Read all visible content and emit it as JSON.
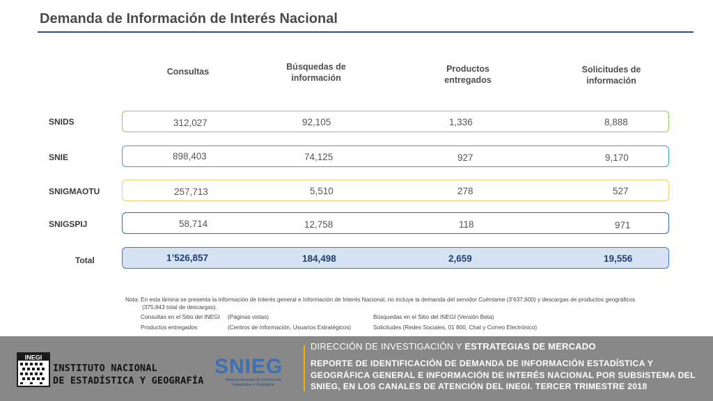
{
  "title": "Demanda de Información de Interés Nacional",
  "headers": {
    "consultas": "Consultas",
    "busquedas": "Búsquedas de información",
    "productos": "Productos entregados",
    "solicitudes": "Solicitudes de información"
  },
  "rows": [
    {
      "label": "SNIDS",
      "consultas": "312,027",
      "busquedas": "92,105",
      "productos": "1,336",
      "solicitudes": "8,888"
    },
    {
      "label": "SNIE",
      "consultas": "898,403",
      "busquedas": "74,125",
      "productos": "927",
      "solicitudes": "9,170"
    },
    {
      "label": "SNIGMAOTU",
      "consultas": "257,713",
      "busquedas": "5,510",
      "productos": "278",
      "solicitudes": "527"
    },
    {
      "label": "SNIGSPIJ",
      "consultas": "58,714",
      "busquedas": "12,758",
      "productos": "118",
      "solicitudes": "971"
    }
  ],
  "total": {
    "label": "Total",
    "consultas": "1’526,857",
    "busquedas": "184,498",
    "productos": "2,659",
    "solicitudes": "19,556"
  },
  "note": {
    "prefix": "Nota:",
    "line1": "En esta lámina se presenta la información de Interés general e Información de Interés Nacional, no incluye la demanda del servidor Cuéntame (3’637,600) y descargas de productos geográficos",
    "line2": "(375,843 total de descargas).",
    "legend": [
      {
        "term": "Consultas en el Sitio del INEGI",
        "desc": "(Páginas vistas)",
        "term2": "Búsquedas en el Sitio del INEGI (Versión Beta)"
      },
      {
        "term": "Productos entregados",
        "desc": "(Centros de Información, Usuarios Estratégicos)",
        "term2": "Solicitudes (Redes Sociales, 01 800, Chat y Correo Electrónico)"
      }
    ]
  },
  "footer": {
    "inegi_line1": "INSTITUTO NACIONAL",
    "inegi_line2": "DE ESTADÍSTICA Y GEOGRAFÍA",
    "inegi_logo_text": "INEGI",
    "snieg": "SNIEG",
    "snieg_sub": "Sistema Nacional de Información Estadística y Geográfica",
    "dept_part1": "DIRECCIÓN DE INVESTIGACIÓN Y ",
    "dept_part2": "ESTRATEGIAS DE MERCADO",
    "report": "REPORTE DE IDENTIFICACIÓN DE DEMANDA DE INFORMACIÓN ESTADÍSTICA Y GEOGRÁFICA GENERAL E INFORMACIÓN DE INTERÉS NACIONAL POR SUBSISTEMA DEL SNIEG, EN LOS CANALES DE ATENCIÓN DEL INEGI. TERCER TRIMESTRE 2018"
  },
  "colors": {
    "footer_bg": "#888888",
    "accent": "#f0b300",
    "title_rule": "#2c4f8a"
  }
}
